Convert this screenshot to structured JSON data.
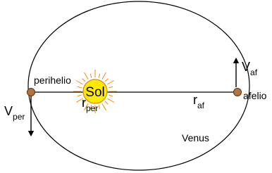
{
  "labels": {
    "sun": "Sol",
    "perihelion": "perihelio",
    "aphelion": "afelio",
    "planet": "Venus"
  },
  "vectors": {
    "v_per": {
      "symbol": "V",
      "subscript": "per"
    },
    "v_af": {
      "symbol": "V",
      "subscript": "af"
    }
  },
  "radii": {
    "r_per": {
      "symbol": "r",
      "subscript": "per"
    },
    "r_af": {
      "symbol": "r",
      "subscript": "af"
    }
  }
}
